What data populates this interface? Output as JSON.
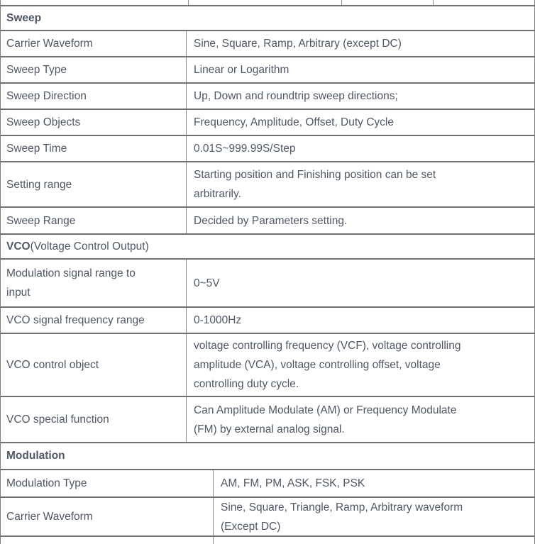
{
  "table": {
    "colors": {
      "text": "#4e5866",
      "border_horizontal": "#707070",
      "border_vertical": "#8a8a8a",
      "background": "#ffffff"
    },
    "sections": [
      {
        "title_bold": "Sweep",
        "title_rest": "",
        "rows": [
          {
            "label": "Carrier Waveform",
            "value": "Sine, Square, Ramp, Arbitrary (except DC)"
          },
          {
            "label": "Sweep Type",
            "value": "Linear or Logarithm"
          },
          {
            "label": "Sweep Direction",
            "value": "Up, Down and roundtrip sweep directions;"
          },
          {
            "label": "Sweep Objects",
            "value": "Frequency, Amplitude, Offset, Duty Cycle"
          },
          {
            "label": "Sweep Time",
            "value": "0.01S~999.99S/Step"
          },
          {
            "label": "Setting range",
            "value": "Starting position and Finishing position can be set\narbitrarily."
          },
          {
            "label": "Sweep Range",
            "value": "Decided by Parameters setting."
          }
        ]
      },
      {
        "title_bold": "VCO",
        "title_rest": " (Voltage Control Output)",
        "rows": [
          {
            "label": "Modulation signal range to\ninput",
            "value": "0~5V"
          },
          {
            "label": "VCO signal frequency range",
            "value": "0-1000Hz"
          },
          {
            "label": "VCO control object",
            "value": "voltage controlling frequency (VCF), voltage controlling\namplitude (VCA), voltage controlling offset, voltage\ncontrolling duty cycle."
          },
          {
            "label": "VCO special function",
            "value": "Can Amplitude Modulate (AM) or Frequency Modulate\n(FM) by external analog signal."
          }
        ]
      },
      {
        "title_bold": "Modulation",
        "title_rest": "",
        "rows": [
          {
            "label": "Modulation Type",
            "value": "AM, FM, PM, ASK, FSK, PSK"
          },
          {
            "label": "Carrier Waveform",
            "value": "Sine, Square, Triangle, Ramp, Arbitrary waveform\n(Except DC)"
          }
        ]
      }
    ]
  }
}
